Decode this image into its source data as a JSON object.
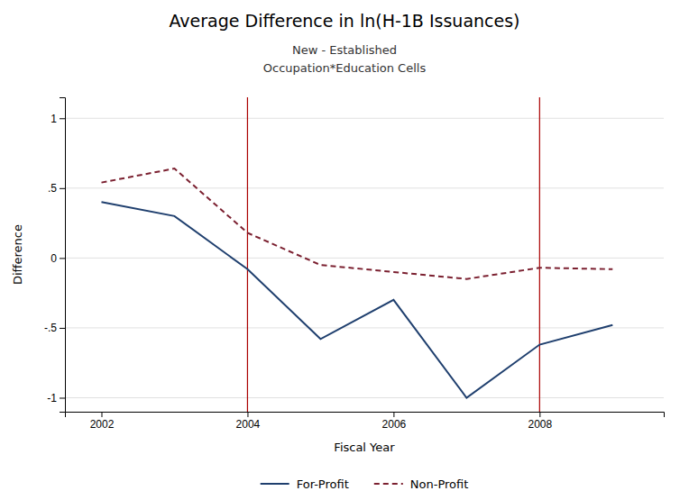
{
  "chart_data": {
    "type": "line",
    "title": "Average Difference in ln(H-1B Issuances)",
    "subtitle": [
      "New - Established",
      "Occupation*Education Cells"
    ],
    "x_label": "Fiscal Year",
    "y_label": "Difference",
    "x": [
      2002,
      2003,
      2004,
      2005,
      2006,
      2007,
      2008,
      2009
    ],
    "series": [
      {
        "name": "For-Profit",
        "color": "#1f3f6e",
        "line_style": "solid",
        "values": [
          0.4,
          0.3,
          -0.08,
          -0.58,
          -0.3,
          -1.0,
          -0.62,
          -0.48
        ]
      },
      {
        "name": "Non-Profit",
        "color": "#7b2030",
        "line_style": "dashed",
        "values": [
          0.54,
          0.64,
          0.18,
          -0.05,
          -0.1,
          -0.15,
          -0.07,
          -0.08
        ]
      }
    ],
    "vlines": [
      {
        "x": 2004,
        "color": "#aa0000"
      },
      {
        "x": 2008,
        "color": "#aa0000"
      }
    ],
    "xlim": [
      2001.5,
      2009.7
    ],
    "xticks": [
      2002,
      2004,
      2006,
      2008
    ],
    "ylim": [
      -1.1,
      1.15
    ],
    "yticks": [
      -1,
      {
        "value": -0.5,
        "label": "-.5"
      },
      0,
      {
        "value": 0.5,
        "label": ".5"
      },
      1
    ],
    "grid": true,
    "legend": "bottom"
  }
}
